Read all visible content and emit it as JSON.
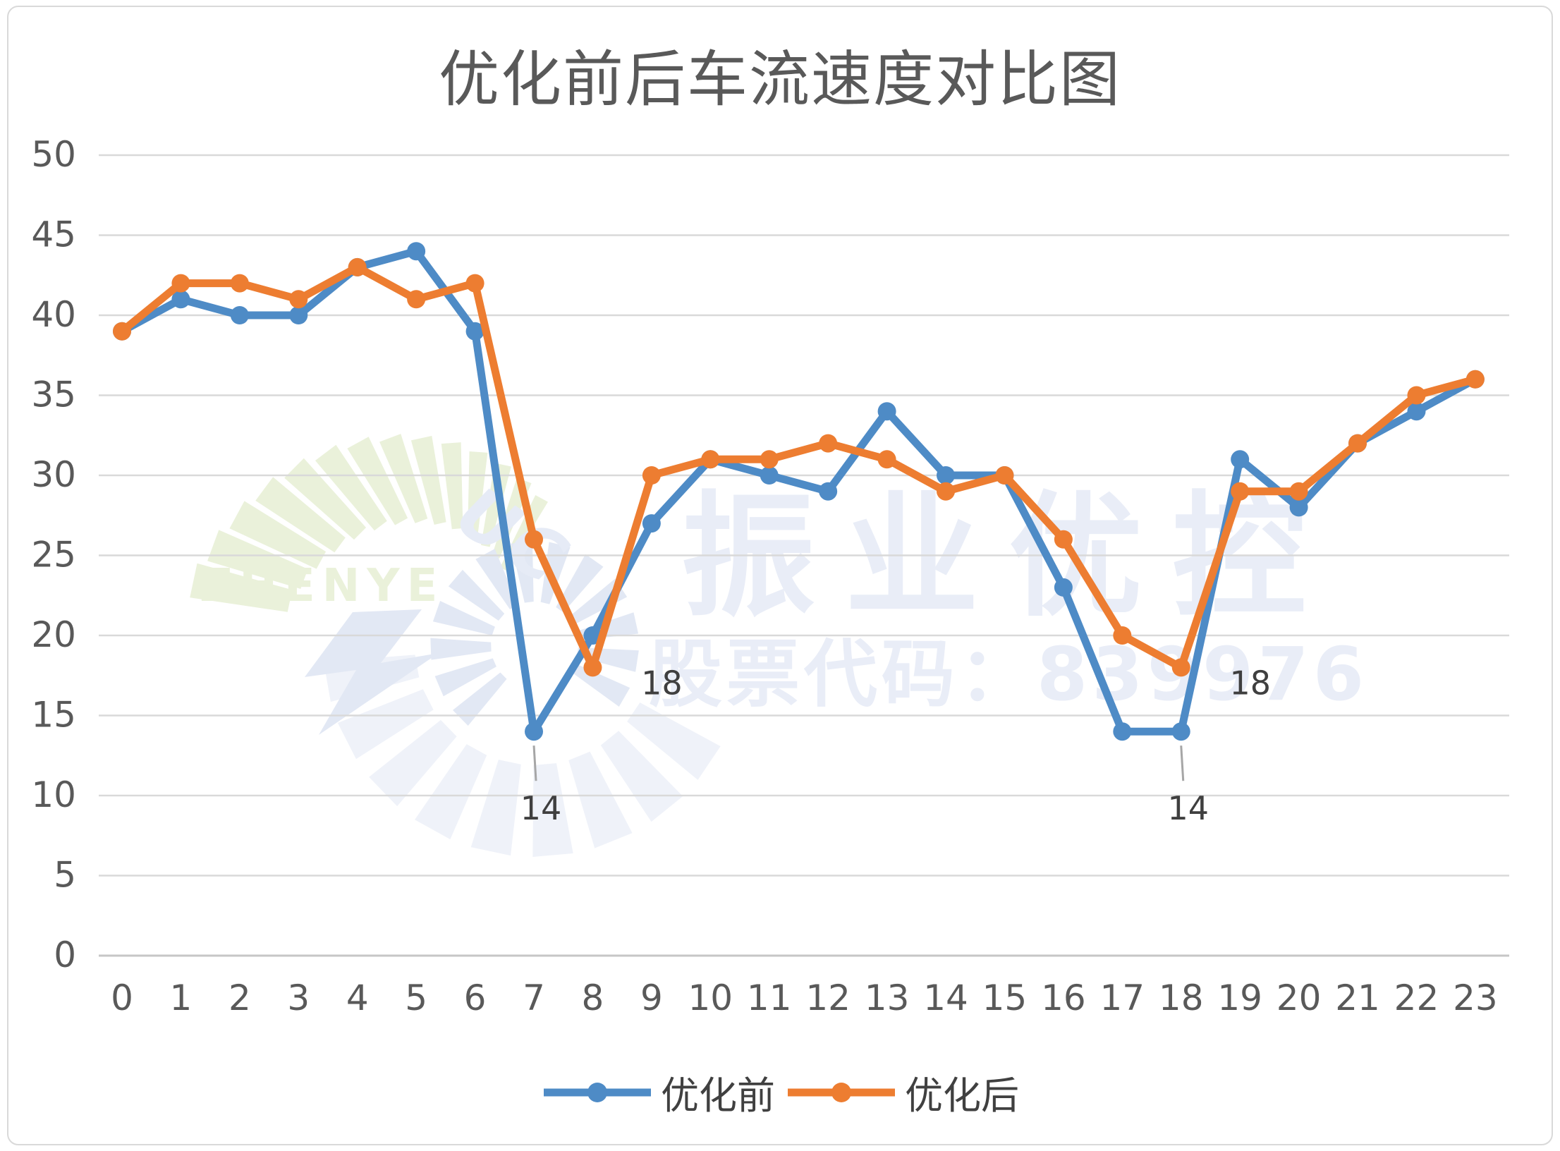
{
  "chart_data": {
    "type": "line",
    "title": "优化前后车流速度对比图",
    "categories": [
      "0",
      "1",
      "2",
      "3",
      "4",
      "5",
      "6",
      "7",
      "8",
      "9",
      "10",
      "11",
      "12",
      "13",
      "14",
      "15",
      "16",
      "17",
      "18",
      "19",
      "20",
      "21",
      "22",
      "23"
    ],
    "series": [
      {
        "name": "优化前",
        "color": "#4e8bc6",
        "values": [
          39,
          41,
          40,
          40,
          43,
          44,
          39,
          14,
          20,
          27,
          31,
          30,
          29,
          34,
          30,
          30,
          23,
          14,
          14,
          31,
          28,
          32,
          34,
          36
        ]
      },
      {
        "name": "优化后",
        "color": "#ed7d31",
        "values": [
          39,
          42,
          42,
          41,
          43,
          41,
          42,
          26,
          18,
          30,
          31,
          31,
          32,
          31,
          29,
          30,
          26,
          20,
          18,
          29,
          29,
          32,
          35,
          36
        ]
      }
    ],
    "ylim": [
      0,
      50
    ],
    "ytick_step": 5,
    "yticks": [
      "0",
      "5",
      "10",
      "15",
      "20",
      "25",
      "30",
      "35",
      "40",
      "45",
      "50"
    ],
    "grid": true,
    "legend_position": "bottom",
    "annotations": [
      {
        "series": 0,
        "index": 7,
        "text": "14",
        "placement": "below"
      },
      {
        "series": 1,
        "index": 8,
        "text": "18",
        "placement": "right"
      },
      {
        "series": 0,
        "index": 18,
        "text": "14",
        "placement": "below"
      },
      {
        "series": 1,
        "index": 18,
        "text": "18",
        "placement": "right"
      }
    ]
  },
  "colors": {
    "grid": "#d9d9d9",
    "axis": "#c6c6c6",
    "tick_label": "#595959",
    "title": "#595959",
    "data_label": "#3f3f3f",
    "leader": "#a6a6a6"
  },
  "watermark": {
    "brand_en": "ZHENYE",
    "brand_letters": "UC",
    "brand_cn": "振业优控",
    "stock_line": "股票代码：839976",
    "green": "#eaf1da",
    "blue": "#e2e8f4",
    "blue_faint": "#eff2f9",
    "text_color": "#e9edf7"
  }
}
